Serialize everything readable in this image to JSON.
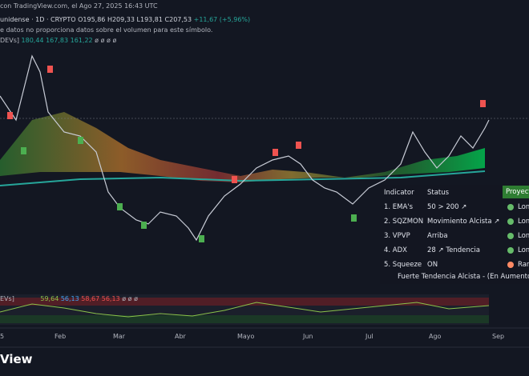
{
  "header": {
    "source": "con TradingView.com, el Ago 27, 2025 16:43 UTC",
    "symbol": "unidense · 1D · CRYPTO",
    "open": "O195,86",
    "high": "H209,33",
    "low": "L193,81",
    "close": "C207,53",
    "change": "+11,67 (+5,96%)",
    "volume_note": "e datos no proporciona datos sobre el volumen para este símbolo.",
    "ema_label": "DEVs]",
    "ema_values": [
      "180,44",
      "167,83",
      "161,22"
    ],
    "ema_empty": "ø ø ø ø"
  },
  "table": {
    "headers": [
      "Indicator",
      "Status",
      "Proyect"
    ],
    "rows": [
      [
        "1. EMA's",
        "50 > 200 ↗",
        "Lon"
      ],
      [
        "2. SQZMON",
        "Movimiento Alcista ↗",
        "Lon"
      ],
      [
        "3. VPVP",
        "Arriba",
        "Lon"
      ],
      [
        "4. ADX",
        "28 ↗ Tendencia",
        "Lon"
      ],
      [
        "5. Squeeze",
        "ON",
        "Ran"
      ]
    ],
    "footer": "Fuerte Tendencia Alcista - (En Aumento"
  },
  "lower_pane": {
    "label": "EVs]",
    "values": [
      "59,64",
      "56,13",
      "58,67",
      "56,13"
    ],
    "empty": "ø ø ø"
  },
  "x_axis": [
    "5",
    "Feb",
    "Mar",
    "Abr",
    "Mayo",
    "Jun",
    "Jul",
    "Ago",
    "Sep"
  ],
  "logo": "View"
}
